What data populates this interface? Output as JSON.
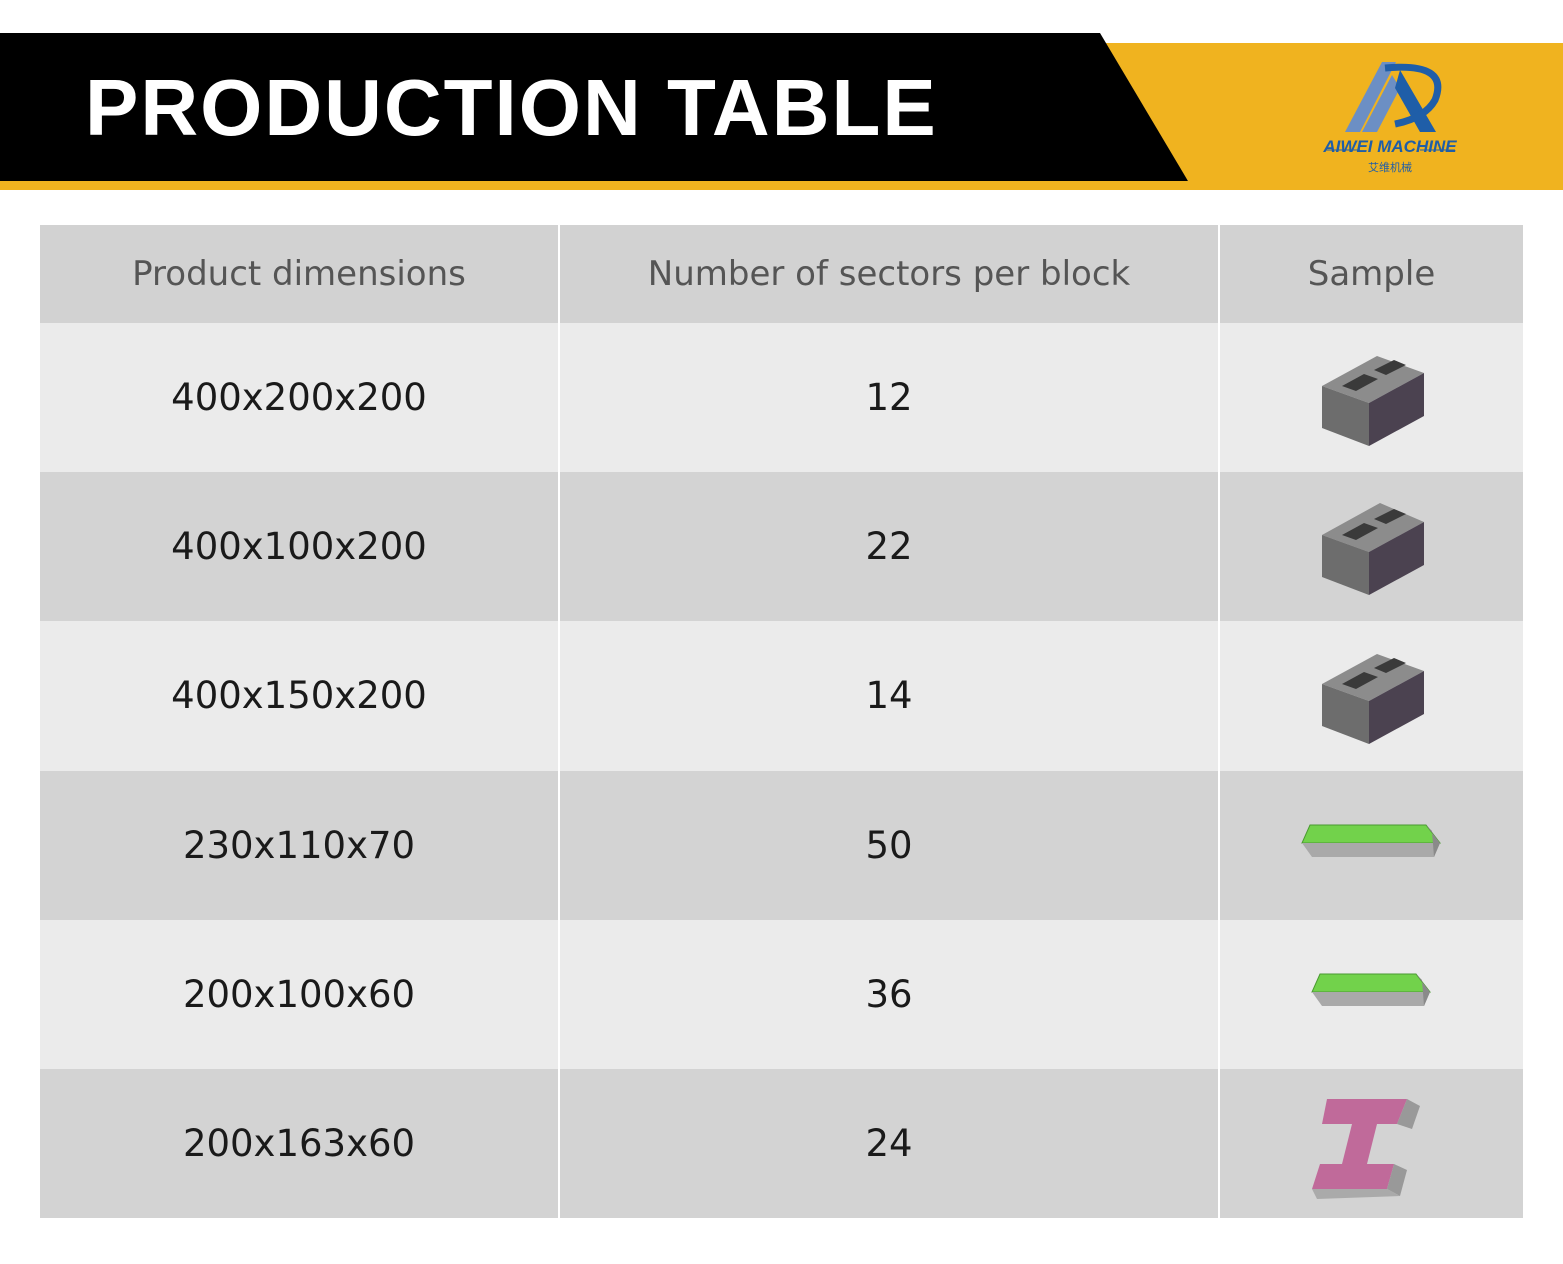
{
  "header": {
    "title": "PRODUCTION TABLE",
    "logo": {
      "name": "AIWEI MACHINE",
      "subtitle": "艾维机械"
    }
  },
  "table": {
    "columns": [
      "Product dimensions",
      "Number of sectors per block",
      "Sample"
    ],
    "rows": [
      [
        "400x200x200",
        12
      ],
      [
        "400x100x200",
        22
      ],
      [
        "400x150x200",
        14
      ],
      [
        "230x110x70",
        50
      ],
      [
        "200x100x60",
        36
      ],
      [
        "200x163x60",
        24
      ]
    ]
  }
}
